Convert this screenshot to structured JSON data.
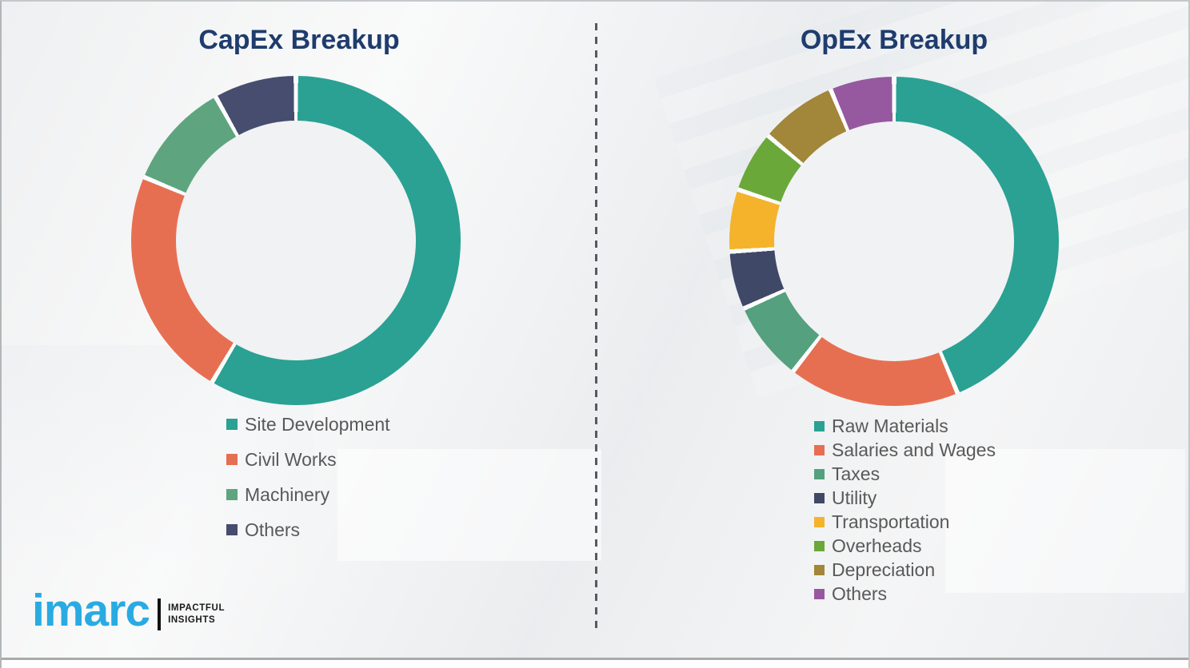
{
  "chart_data": [
    {
      "type": "pie",
      "subtype": "donut",
      "title": "CapEx Breakup",
      "categories": [
        "Site Development",
        "Civil Works",
        "Machinery",
        "Others"
      ],
      "values": [
        58.5,
        22.8,
        10.6,
        8.1
      ],
      "unit": "% (estimated from arc angles)",
      "colors": [
        "#2aa193",
        "#e76f51",
        "#5ea57f",
        "#464d6e"
      ],
      "start_angle_deg": 0,
      "direction": "clockwise",
      "legend_position": "below-left",
      "data_labels": false
    },
    {
      "type": "pie",
      "subtype": "donut",
      "title": "OpEx Breakup",
      "categories": [
        "Raw Materials",
        "Salaries and Wages",
        "Taxes",
        "Utility",
        "Transportation",
        "Overheads",
        "Depreciation",
        "Others"
      ],
      "values": [
        43.7,
        16.8,
        7.8,
        5.7,
        6.1,
        6.0,
        7.6,
        6.3
      ],
      "unit": "% (estimated from arc angles)",
      "colors": [
        "#2aa193",
        "#e76f51",
        "#55a07e",
        "#404868",
        "#f4b32b",
        "#6aa839",
        "#a28639",
        "#96599f"
      ],
      "start_angle_deg": 0,
      "direction": "clockwise",
      "legend_position": "below-left",
      "data_labels": false
    }
  ],
  "colors": {
    "title_text": "#1f3c6d",
    "legend_text": "#595959",
    "brand_blue": "#29abe2",
    "background": "#eff0f1",
    "divider_dash": "#555a5e"
  },
  "logo": {
    "brand": "imarc",
    "tagline_line1": "IMPACTFUL",
    "tagline_line2": "INSIGHTS"
  }
}
